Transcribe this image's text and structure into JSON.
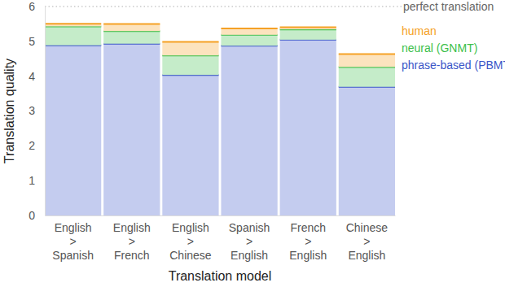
{
  "chart_data": {
    "type": "bar",
    "stacked": true,
    "xlabel": "Translation model",
    "ylabel": "Translation quality",
    "categories": [
      "English > Spanish",
      "English > French",
      "English > Chinese",
      "Spanish > English",
      "French > English",
      "Chinese > English"
    ],
    "series": [
      {
        "name": "phrase-based (PBMT)",
        "color": "#3a56c8",
        "values": [
          4.885,
          4.932,
          4.035,
          4.872,
          5.046,
          3.694
        ]
      },
      {
        "name": "neural (GNMT)",
        "color": "#3cbf4a",
        "values": [
          0.543,
          0.363,
          0.559,
          0.315,
          0.297,
          0.569
        ]
      },
      {
        "name": "human",
        "color": "#f5a125",
        "values": [
          0.076,
          0.201,
          0.393,
          0.185,
          0.061,
          0.373
        ]
      }
    ],
    "ylim": [
      0,
      6
    ],
    "yticks": [
      0,
      1,
      2,
      3,
      4,
      5,
      6
    ],
    "grid": false,
    "annotations": [
      {
        "text": "perfect translation",
        "y": 6
      }
    ]
  }
}
